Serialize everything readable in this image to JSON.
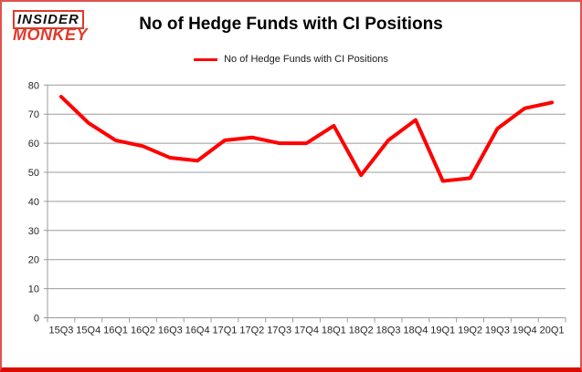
{
  "brand": {
    "line1": "INSIDER",
    "line2": "MONKEY"
  },
  "header": {
    "title": "No of Hedge Funds with CI Positions"
  },
  "legend": {
    "label": "No of Hedge Funds with CI Positions"
  },
  "colors": {
    "series_red": "#ff0000",
    "grid": "#9b9b9b",
    "axis_text": "#262626",
    "frame_border": "#e0524f",
    "frame_border_bottom": "#da0b00",
    "logo_red": "#e03a2a"
  },
  "chart_data": {
    "type": "line",
    "title": "No of Hedge Funds with CI Positions",
    "categories": [
      "15Q3",
      "15Q4",
      "16Q1",
      "16Q2",
      "16Q3",
      "16Q4",
      "17Q1",
      "17Q2",
      "17Q3",
      "17Q4",
      "18Q1",
      "18Q2",
      "18Q3",
      "18Q4",
      "19Q1",
      "19Q2",
      "19Q3",
      "19Q4",
      "20Q1"
    ],
    "series": [
      {
        "name": "No of Hedge Funds with CI Positions",
        "color": "#ff0000",
        "values": [
          76,
          67,
          61,
          59,
          55,
          54,
          61,
          62,
          60,
          60,
          66,
          49,
          61,
          68,
          47,
          48,
          65,
          72,
          74
        ]
      }
    ],
    "xlabel": "",
    "ylabel": "",
    "ylim": [
      0,
      80
    ],
    "yticks": [
      0,
      10,
      20,
      30,
      40,
      50,
      60,
      70,
      80
    ],
    "grid": true,
    "legend_position": "top-center"
  }
}
